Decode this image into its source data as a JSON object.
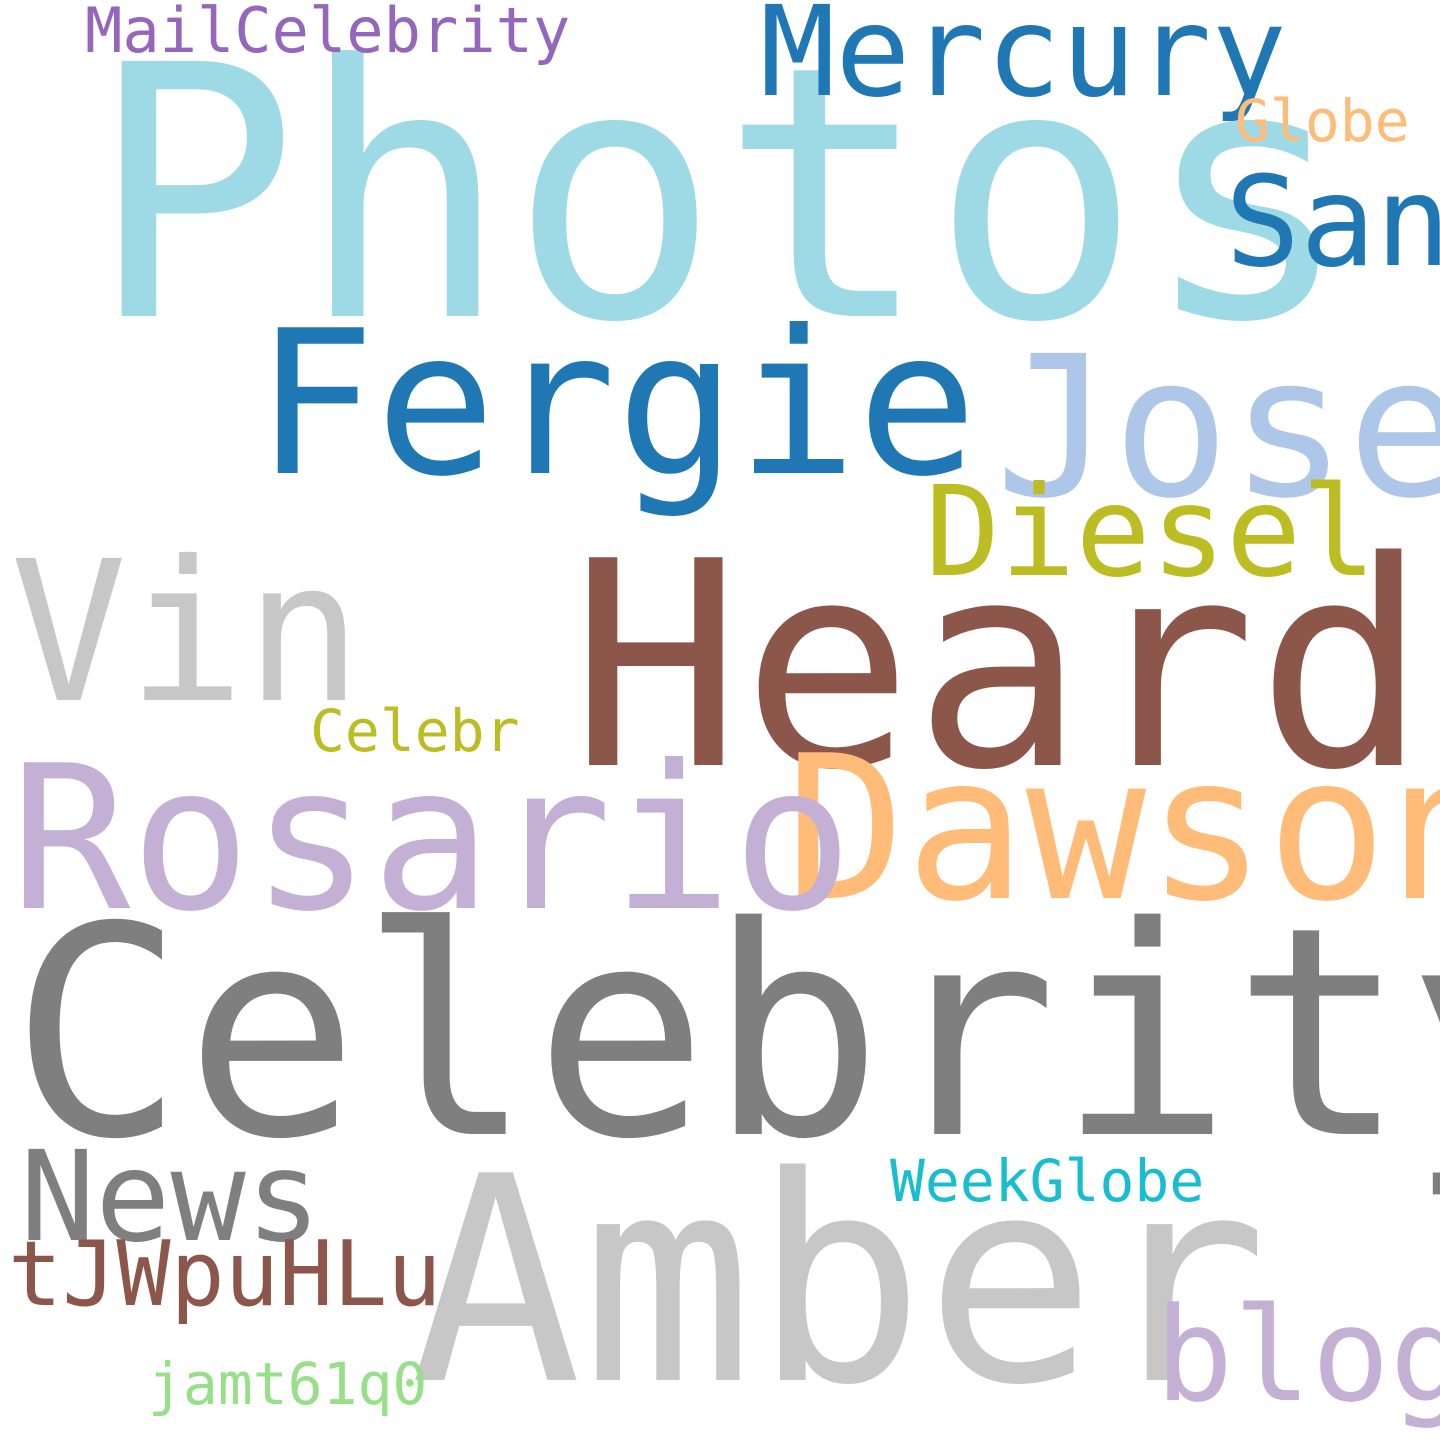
{
  "words": [
    {
      "text": "Photos",
      "color": "#9edae5"
    },
    {
      "text": "Celebrity",
      "color": "#7f7f7f"
    },
    {
      "text": "Heard",
      "color": "#8c564b"
    },
    {
      "text": "Amber",
      "color": "#c7c7c7"
    },
    {
      "text": "Fergie",
      "color": "#1f77b4"
    },
    {
      "text": "Dawson",
      "color": "#ffbb78"
    },
    {
      "text": "Rosario",
      "color": "#c5b0d5"
    },
    {
      "text": "Jose",
      "color": "#aec7e8"
    },
    {
      "text": "Vin",
      "color": "#c7c7c7"
    },
    {
      "text": "Mercury",
      "color": "#1f77b4"
    },
    {
      "text": "Diesel",
      "color": "#bcbd22"
    },
    {
      "text": "San",
      "color": "#1f77b4"
    },
    {
      "text": "News",
      "color": "#7f7f7f"
    },
    {
      "text": "blog",
      "color": "#c5b0d5"
    },
    {
      "text": "tJWpuHLu",
      "color": "#8c564b"
    },
    {
      "text": "MailCelebrity",
      "color": "#9467bd"
    },
    {
      "text": "Globe",
      "color": "#ffbb78"
    },
    {
      "text": "Celebr",
      "color": "#bcbd22"
    },
    {
      "text": "WeekGlobe",
      "color": "#17becf"
    },
    {
      "text": "jamt61q0",
      "color": "#98df8a"
    }
  ]
}
